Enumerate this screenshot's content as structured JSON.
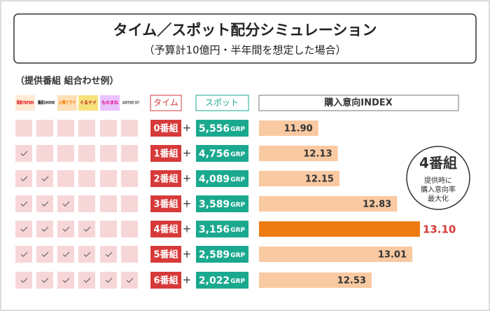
{
  "title": "タイム／スポット配分シミュレーション",
  "subtitle": "（予算計10億円・半年間を想定した場合）",
  "programs_label": "（提供番組 組合わせ例）",
  "programs": [
    "報道STATION",
    "鶴瓶SHOW",
    "火曜ドラマ",
    "ぐるナイ",
    "ものまね",
    "ANOTHER SKY"
  ],
  "columns": {
    "time": "タイム",
    "spot": "スポット",
    "index": "購入意向INDEX"
  },
  "plus": "+",
  "spot": [
    "5,556",
    "4,756",
    "4,089",
    "3,589",
    "3,156",
    "2,589",
    "2,022"
  ],
  "spot_unit": "GRP",
  "callout": {
    "title": "4番組",
    "lines": [
      "提供時に",
      "購入意向率",
      "最大化"
    ]
  },
  "chart_data": {
    "type": "bar",
    "orientation": "horizontal",
    "categories": [
      "0番組",
      "1番組",
      "2番組",
      "3番組",
      "4番組",
      "5番組",
      "6番組"
    ],
    "values": [
      11.9,
      12.13,
      12.15,
      12.83,
      13.1,
      13.01,
      12.53
    ],
    "value_labels": [
      "11.90",
      "12.13",
      "12.15",
      "12.83",
      "13.10",
      "13.01",
      "12.53"
    ],
    "color": "#f9c9a2",
    "highlight_category": "4番組",
    "highlight_color": "#ee7a12",
    "xlim": [
      11.2,
      13.2
    ]
  }
}
